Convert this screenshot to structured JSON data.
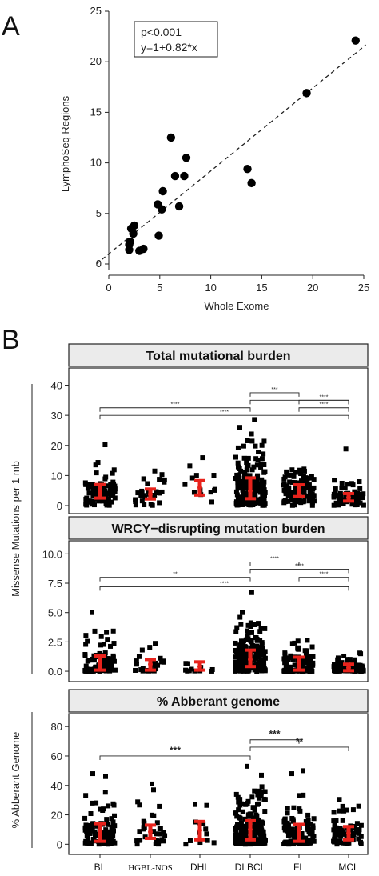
{
  "panel_a_label": "A",
  "panel_b_label": "B",
  "chart_data": [
    {
      "type": "scatter",
      "panel": "A",
      "xlabel": "Whole Exome",
      "ylabel": "LymphoSeq Regions",
      "xlim": [
        0,
        25
      ],
      "ylim": [
        0,
        25
      ],
      "xticks": [
        0,
        5,
        10,
        15,
        20,
        25
      ],
      "yticks": [
        0,
        5,
        10,
        15,
        20,
        25
      ],
      "annotation": [
        "p<0.001",
        "y=1+0.82*x"
      ],
      "fit": {
        "intercept": 1,
        "slope": 0.82
      },
      "points": [
        [
          2.0,
          1.4
        ],
        [
          2.0,
          1.9
        ],
        [
          2.1,
          2.2
        ],
        [
          2.2,
          3.5
        ],
        [
          2.4,
          3.0
        ],
        [
          2.5,
          3.8
        ],
        [
          3.0,
          1.3
        ],
        [
          3.4,
          1.5
        ],
        [
          4.9,
          2.8
        ],
        [
          4.8,
          5.9
        ],
        [
          5.2,
          5.4
        ],
        [
          5.3,
          7.2
        ],
        [
          6.1,
          12.5
        ],
        [
          6.5,
          8.7
        ],
        [
          6.9,
          5.7
        ],
        [
          7.4,
          8.7
        ],
        [
          7.6,
          10.5
        ],
        [
          13.6,
          9.4
        ],
        [
          14.0,
          8.0
        ],
        [
          19.4,
          16.9
        ],
        [
          24.2,
          22.1
        ]
      ]
    },
    {
      "type": "scatter",
      "panel": "B",
      "title": "Total mutational burden",
      "categories": [
        "BL",
        "HGBL-NOS",
        "DHL",
        "DLBCL",
        "FL",
        "MCL"
      ],
      "ylim": [
        0,
        42
      ],
      "yticks": [
        0,
        10,
        20,
        30,
        40
      ],
      "median": [
        4.6,
        3.8,
        6.0,
        4.9,
        4.5,
        2.7
      ],
      "iqr": [
        [
          2.5,
          7.0
        ],
        [
          2.2,
          5.5
        ],
        [
          3.5,
          8.3
        ],
        [
          2.3,
          9.2
        ],
        [
          3.0,
          6.9
        ],
        [
          1.5,
          4.0
        ]
      ],
      "outliers": [
        [
          0,
          20.2
        ],
        [
          3,
          28.6
        ],
        [
          3,
          26.0
        ],
        [
          3,
          23.8
        ],
        [
          5,
          18.8
        ],
        [
          2,
          13.2
        ],
        [
          1,
          11.5
        ],
        [
          4,
          11.0
        ]
      ],
      "brackets": [
        {
          "from": 3,
          "to": 4,
          "y": 37.5,
          "label": "***"
        },
        {
          "from": 4,
          "to": 5,
          "y": 35.0,
          "label": "****"
        },
        {
          "from": 0,
          "to": 3,
          "y": 32.5,
          "label": "****"
        },
        {
          "from": 4,
          "to": 5,
          "y": 32.5,
          "label": "****"
        },
        {
          "from": 0,
          "to": 5,
          "y": 30.0,
          "label": "****"
        },
        {
          "from": 3,
          "to": 5,
          "y": 35.0,
          "label": ""
        }
      ]
    },
    {
      "type": "scatter",
      "panel": "B",
      "title": "WRCY−disrupting mutation burden",
      "categories": [
        "BL",
        "HGBL-NOS",
        "DHL",
        "DLBCL",
        "FL",
        "MCL"
      ],
      "ylim": [
        -0.2,
        10.5
      ],
      "yticks": [
        0.0,
        2.5,
        5.0,
        7.5,
        10.0
      ],
      "ytick_labels": [
        "0.0",
        "2.5",
        "5.0",
        "7.5",
        "10.0"
      ],
      "median": [
        0.7,
        0.6,
        0.4,
        1.0,
        0.6,
        0.3
      ],
      "iqr": [
        [
          0.1,
          1.3
        ],
        [
          0.1,
          1.0
        ],
        [
          0.1,
          0.8
        ],
        [
          0.4,
          1.8
        ],
        [
          0.1,
          1.2
        ],
        [
          0.05,
          0.6
        ]
      ],
      "outliers": [
        [
          0,
          5.0
        ],
        [
          3,
          6.7
        ],
        [
          3,
          5.0
        ],
        [
          3,
          4.6
        ],
        [
          0,
          3.3
        ],
        [
          4,
          2.0
        ],
        [
          5,
          1.3
        ]
      ],
      "brackets": [
        {
          "from": 3,
          "to": 4,
          "y": 9.3,
          "label": "****"
        },
        {
          "from": 3,
          "to": 5,
          "y": 8.7,
          "label": "****"
        },
        {
          "from": 0,
          "to": 3,
          "y": 8.0,
          "label": "**"
        },
        {
          "from": 4,
          "to": 5,
          "y": 8.0,
          "label": "****"
        },
        {
          "from": 0,
          "to": 5,
          "y": 7.2,
          "label": "****"
        }
      ]
    },
    {
      "type": "scatter",
      "panel": "B",
      "title": "% Abberant genome",
      "ylabel": "% Abberant Genome",
      "categories": [
        "BL",
        "HGBL-NOS",
        "DHL",
        "DLBCL",
        "FL",
        "MCL"
      ],
      "ylim": [
        -2,
        85
      ],
      "yticks": [
        0,
        20,
        40,
        60,
        80
      ],
      "median": [
        5.0,
        8.5,
        9.5,
        10.0,
        6.5,
        7.5
      ],
      "iqr": [
        [
          2.0,
          14.0
        ],
        [
          4.0,
          13.0
        ],
        [
          3.0,
          15.5
        ],
        [
          3.0,
          16.0
        ],
        [
          2.0,
          13.5
        ],
        [
          3.0,
          12.0
        ]
      ],
      "outliers": [
        [
          0,
          48.0
        ],
        [
          0,
          46.0
        ],
        [
          1,
          41.0
        ],
        [
          1,
          37.0
        ],
        [
          2,
          27.0
        ],
        [
          3,
          53.0
        ],
        [
          3,
          47.0
        ],
        [
          4,
          50.0
        ],
        [
          4,
          48.0
        ],
        [
          5,
          30.5
        ]
      ],
      "brackets": [
        {
          "from": 3,
          "to": 4,
          "y": 71.0,
          "label": "***"
        },
        {
          "from": 3,
          "to": 5,
          "y": 66.0,
          "label": "**"
        },
        {
          "from": 0,
          "to": 3,
          "y": 60.0,
          "label": "***"
        }
      ]
    }
  ],
  "shared_ylabel": "Missense Mutations per 1 mb",
  "colors": {
    "points": "#000000",
    "range": "#e8231c",
    "strip": "#ebebeb"
  }
}
